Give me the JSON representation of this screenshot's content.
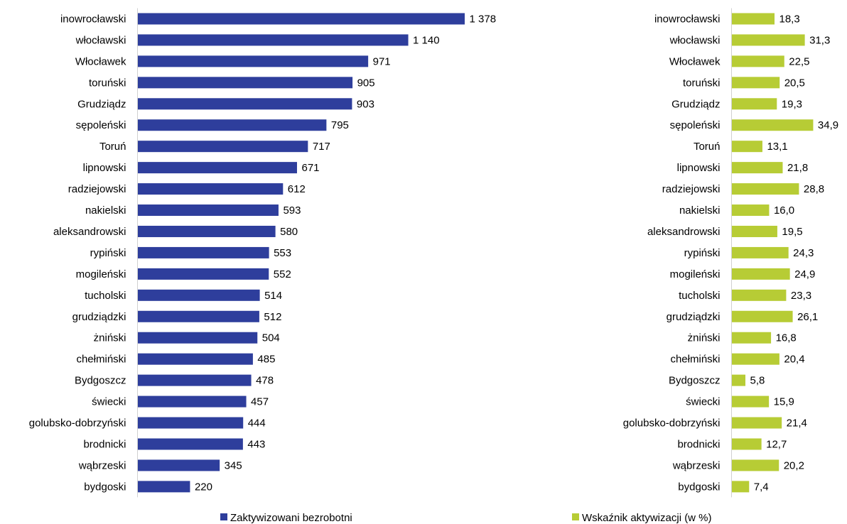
{
  "chart_data": [
    {
      "type": "bar",
      "orientation": "horizontal",
      "categories": [
        "inowrocławski",
        "włocławski",
        "Włocławek",
        "toruński",
        "Grudziądz",
        "sępoleński",
        "Toruń",
        "lipnowski",
        "radziejowski",
        "nakielski",
        "aleksandrowski",
        "rypiński",
        "mogileński",
        "tucholski",
        "grudziądzki",
        "żniński",
        "chełmiński",
        "Bydgoszcz",
        "świecki",
        "golubsko-dobrzyński",
        "brodnicki",
        "wąbrzeski",
        "bydgoski"
      ],
      "series": [
        {
          "name": "Zaktywizowani bezrobotni",
          "color": "#2e3e9c",
          "values": [
            1378,
            1140,
            971,
            905,
            903,
            795,
            717,
            671,
            612,
            593,
            580,
            553,
            552,
            514,
            512,
            504,
            485,
            478,
            457,
            444,
            443,
            345,
            220
          ],
          "data_labels": [
            "1 378",
            "1 140",
            "971",
            "905",
            "903",
            "795",
            "717",
            "671",
            "612",
            "593",
            "580",
            "553",
            "552",
            "514",
            "512",
            "504",
            "485",
            "478",
            "457",
            "444",
            "443",
            "345",
            "220"
          ]
        }
      ],
      "xlim": [
        0,
        1500
      ],
      "grid": false,
      "legend": "bottom"
    },
    {
      "type": "bar",
      "orientation": "horizontal",
      "categories": [
        "inowrocławski",
        "włocławski",
        "Włocławek",
        "toruński",
        "Grudziądz",
        "sępoleński",
        "Toruń",
        "lipnowski",
        "radziejowski",
        "nakielski",
        "aleksandrowski",
        "rypiński",
        "mogileński",
        "tucholski",
        "grudziądzki",
        "żniński",
        "chełmiński",
        "Bydgoszcz",
        "świecki",
        "golubsko-dobrzyński",
        "brodnicki",
        "wąbrzeski",
        "bydgoski"
      ],
      "series": [
        {
          "name": "Wskaźnik aktywizacji (w %)",
          "color": "#b7cc35",
          "values": [
            18.3,
            31.3,
            22.5,
            20.5,
            19.3,
            34.9,
            13.1,
            21.8,
            28.8,
            16.0,
            19.5,
            24.3,
            24.9,
            23.3,
            26.1,
            16.8,
            20.4,
            5.8,
            15.9,
            21.4,
            12.7,
            20.2,
            7.4
          ],
          "data_labels": [
            "18,3",
            "31,3",
            "22,5",
            "20,5",
            "19,3",
            "34,9",
            "13,1",
            "21,8",
            "28,8",
            "16,0",
            "19,5",
            "24,3",
            "24,9",
            "23,3",
            "26,1",
            "16,8",
            "20,4",
            "5,8",
            "15,9",
            "21,4",
            "12,7",
            "20,2",
            "7,4"
          ]
        }
      ],
      "xlim": [
        0,
        40
      ],
      "grid": false,
      "legend": "bottom"
    }
  ]
}
